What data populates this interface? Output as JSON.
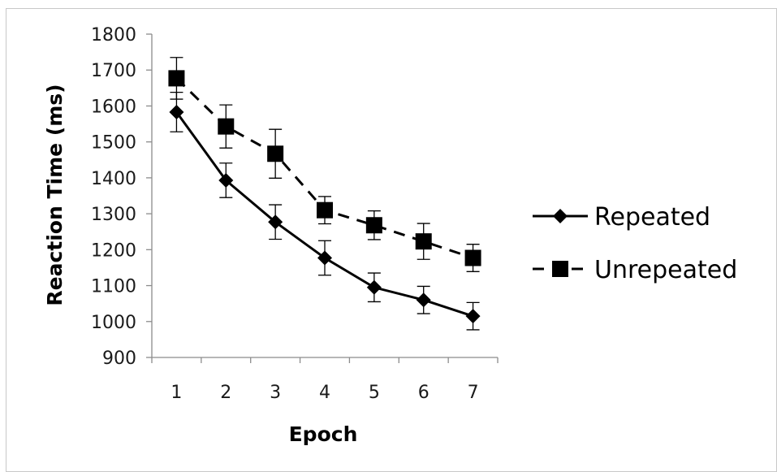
{
  "chart_data": {
    "type": "line",
    "title": "",
    "xlabel": "Epoch",
    "ylabel": "Reaction Time (ms)",
    "categories": [
      "1",
      "2",
      "3",
      "4",
      "5",
      "6",
      "7"
    ],
    "ylim": [
      900,
      1800
    ],
    "yticks": [
      "900",
      "1000",
      "1100",
      "1200",
      "1300",
      "1400",
      "1500",
      "1600",
      "1700",
      "1800"
    ],
    "grid": false,
    "legend_position": "right",
    "series": [
      {
        "name": "Repeated",
        "values": [
          1583,
          1393,
          1277,
          1177,
          1095,
          1060,
          1015
        ],
        "error": [
          55,
          48,
          48,
          48,
          40,
          38,
          38
        ],
        "line_style": "solid",
        "marker": "diamond",
        "color": "#000000"
      },
      {
        "name": "Unrepeated",
        "values": [
          1677,
          1543,
          1467,
          1310,
          1268,
          1223,
          1177
        ],
        "error": [
          58,
          60,
          68,
          38,
          40,
          50,
          38
        ],
        "line_style": "dashed",
        "marker": "square",
        "color": "#000000"
      }
    ]
  }
}
